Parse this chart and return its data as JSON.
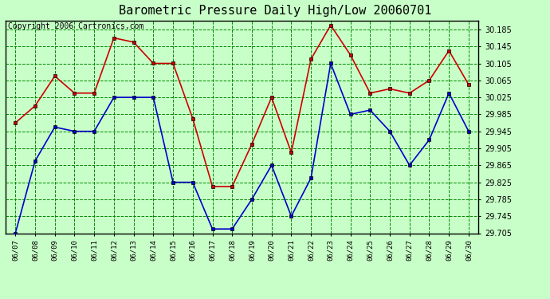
{
  "title": "Barometric Pressure Daily High/Low 20060701",
  "copyright": "Copyright 2006 Cartronics.com",
  "dates": [
    "06/07",
    "06/08",
    "06/09",
    "06/10",
    "06/11",
    "06/12",
    "06/13",
    "06/14",
    "06/15",
    "06/16",
    "06/17",
    "06/18",
    "06/19",
    "06/20",
    "06/21",
    "06/22",
    "06/23",
    "06/24",
    "06/25",
    "06/26",
    "06/27",
    "06/28",
    "06/29",
    "06/30"
  ],
  "high": [
    29.965,
    30.005,
    30.075,
    30.035,
    30.035,
    30.165,
    30.155,
    30.105,
    30.105,
    29.975,
    29.815,
    29.815,
    29.915,
    30.025,
    29.895,
    30.115,
    30.195,
    30.125,
    30.035,
    30.045,
    30.035,
    30.065,
    30.135,
    30.055
  ],
  "low": [
    29.705,
    29.875,
    29.955,
    29.945,
    29.945,
    30.025,
    30.025,
    30.025,
    29.825,
    29.825,
    29.715,
    29.715,
    29.785,
    29.865,
    29.745,
    29.835,
    30.105,
    29.985,
    29.995,
    29.945,
    29.865,
    29.925,
    30.035,
    29.945
  ],
  "high_color": "#cc0000",
  "low_color": "#0000cc",
  "bg_color": "#c8ffc8",
  "plot_bg": "#c8ffc8",
  "grid_color": "#008800",
  "ylim_min": 29.705,
  "ylim_max": 30.205,
  "ytick_step": 0.04,
  "title_fontsize": 11,
  "copyright_fontsize": 7,
  "border_color": "#000000",
  "fig_width": 6.9,
  "fig_height": 3.75,
  "dpi": 100
}
